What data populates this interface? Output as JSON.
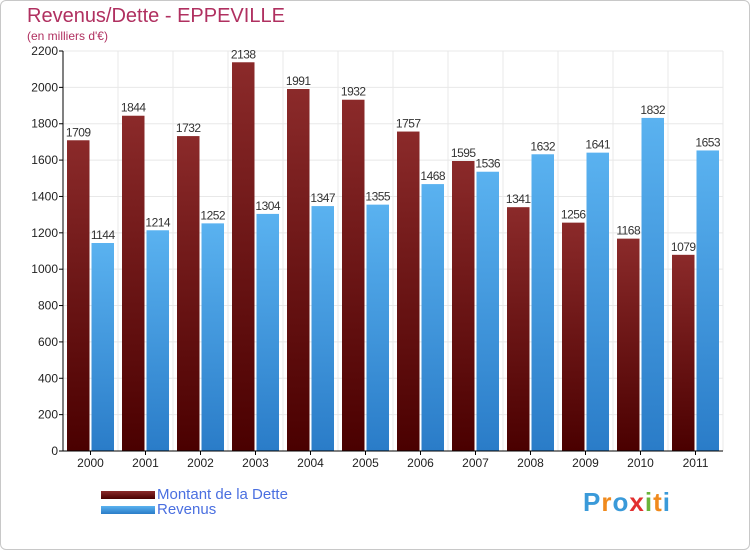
{
  "header": {
    "title": "Revenus/Dette - EPPEVILLE",
    "subtitle": "(en milliers d'€)"
  },
  "chart_data": {
    "type": "bar",
    "categories": [
      "2000",
      "2001",
      "2002",
      "2003",
      "2004",
      "2005",
      "2006",
      "2007",
      "2008",
      "2009",
      "2010",
      "2011"
    ],
    "series": [
      {
        "name": "Montant de la Dette",
        "values": [
          1709,
          1844,
          1732,
          2138,
          1991,
          1932,
          1757,
          1595,
          1341,
          1256,
          1168,
          1079
        ],
        "color": "#7a1616"
      },
      {
        "name": "Revenus",
        "values": [
          1144,
          1214,
          1252,
          1304,
          1347,
          1355,
          1468,
          1536,
          1632,
          1641,
          1832,
          1653
        ],
        "color": "#4aa0e6"
      }
    ],
    "y_ticks": [
      "0",
      "200",
      "400",
      "600",
      "800",
      "1000",
      "1200",
      "1400",
      "1600",
      "1800",
      "2000",
      "2200"
    ],
    "ylim": [
      0,
      2200
    ],
    "grid": true,
    "legend_position": "bottom-left"
  },
  "colors": {
    "title": "#b03060",
    "legend_text": "#4a6fe0",
    "grid": "#e8e8e8",
    "debt_dark": "#4a0000",
    "debt_light": "#8b2a2a",
    "revenue_dark": "#2a7cc8",
    "revenue_light": "#5ab2f0"
  },
  "logo": {
    "letters": [
      "P",
      "r",
      "o",
      "x",
      "i",
      "t",
      "i"
    ],
    "colors": [
      "#3a9ad9",
      "#f08a1c",
      "#3a9ad9",
      "#e23030",
      "#6ab43a",
      "#f08a1c",
      "#3a9ad9"
    ]
  }
}
